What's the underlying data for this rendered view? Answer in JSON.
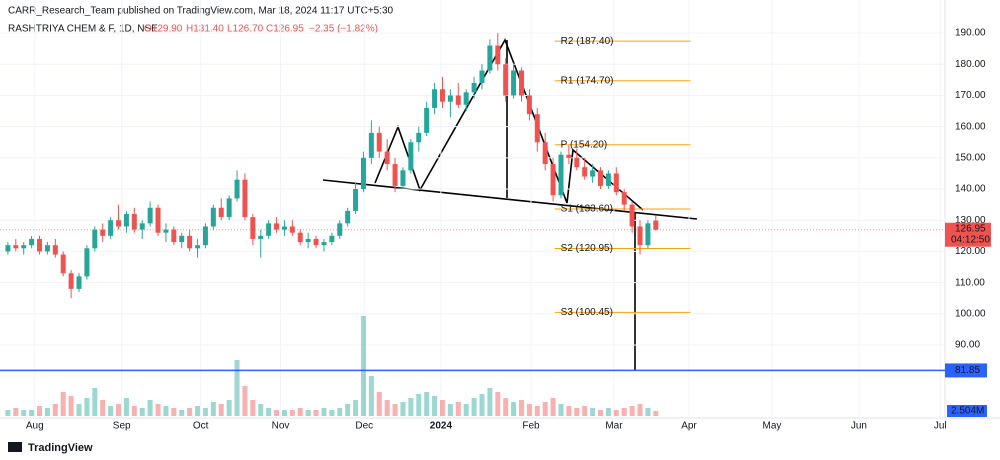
{
  "header": {
    "publisher": "CARR_Research_Team published on TradingView.com, Mar 18, 2024 11:17 UTC+5:30",
    "symbol": "RASHTRIYA CHEM & F, 1D, NSE",
    "open": "O129.90",
    "high": "H131.40",
    "low": "L126.70",
    "close": "C126.95",
    "change": "−2.35 (−1.82%)"
  },
  "footer": {
    "brand": "TradingView"
  },
  "chart_data": {
    "type": "candlestick",
    "up_color": "#26a69a",
    "down_color": "#ef5350",
    "ohlc": [
      [
        120,
        123,
        119,
        122
      ],
      [
        122,
        124,
        120,
        121
      ],
      [
        121,
        123,
        119,
        122
      ],
      [
        122,
        125,
        121,
        124
      ],
      [
        124,
        125,
        119,
        120
      ],
      [
        120,
        123,
        119,
        122
      ],
      [
        122,
        124,
        118,
        119
      ],
      [
        119,
        120,
        112,
        113
      ],
      [
        113,
        114,
        105,
        108
      ],
      [
        108,
        113,
        107,
        112
      ],
      [
        112,
        122,
        111,
        121
      ],
      [
        121,
        128,
        120,
        127
      ],
      [
        127,
        129,
        123,
        125
      ],
      [
        125,
        131,
        124,
        130
      ],
      [
        130,
        135,
        127,
        128
      ],
      [
        128,
        133,
        126,
        132
      ],
      [
        132,
        134,
        126,
        127
      ],
      [
        127,
        130,
        124,
        129
      ],
      [
        129,
        136,
        128,
        134
      ],
      [
        134,
        135,
        125,
        126
      ],
      [
        126,
        129,
        123,
        127
      ],
      [
        127,
        128,
        122,
        123
      ],
      [
        123,
        126,
        121,
        125
      ],
      [
        125,
        127,
        120,
        121
      ],
      [
        121,
        124,
        118,
        122
      ],
      [
        122,
        129,
        121,
        128
      ],
      [
        128,
        135,
        127,
        134
      ],
      [
        134,
        137,
        130,
        131
      ],
      [
        131,
        138,
        130,
        137
      ],
      [
        137,
        146,
        136,
        143
      ],
      [
        143,
        145,
        130,
        131
      ],
      [
        131,
        132,
        122,
        124
      ],
      [
        124,
        127,
        118,
        125
      ],
      [
        125,
        130,
        124,
        129
      ],
      [
        129,
        131,
        126,
        127
      ],
      [
        127,
        130,
        125,
        128
      ],
      [
        128,
        130,
        125,
        126
      ],
      [
        126,
        127,
        122,
        123
      ],
      [
        123,
        126,
        121,
        124
      ],
      [
        124,
        125,
        121,
        122
      ],
      [
        122,
        124,
        120,
        123
      ],
      [
        123,
        126,
        122,
        125
      ],
      [
        125,
        130,
        124,
        129
      ],
      [
        129,
        134,
        128,
        133
      ],
      [
        133,
        142,
        132,
        140
      ],
      [
        140,
        152,
        139,
        150
      ],
      [
        150,
        162,
        148,
        158
      ],
      [
        158,
        160,
        150,
        152
      ],
      [
        152,
        156,
        146,
        148
      ],
      [
        148,
        150,
        139,
        141
      ],
      [
        141,
        147,
        140,
        146
      ],
      [
        146,
        156,
        145,
        155
      ],
      [
        155,
        160,
        152,
        158
      ],
      [
        158,
        168,
        157,
        166
      ],
      [
        166,
        174,
        164,
        172
      ],
      [
        172,
        176,
        166,
        168
      ],
      [
        168,
        172,
        163,
        170
      ],
      [
        170,
        174,
        166,
        167
      ],
      [
        167,
        172,
        165,
        171
      ],
      [
        171,
        176,
        169,
        174
      ],
      [
        174,
        180,
        172,
        178
      ],
      [
        178,
        188,
        177,
        186
      ],
      [
        186,
        190,
        178,
        180
      ],
      [
        180,
        182,
        168,
        170
      ],
      [
        170,
        180,
        169,
        178
      ],
      [
        178,
        179,
        168,
        170
      ],
      [
        170,
        172,
        162,
        164
      ],
      [
        164,
        166,
        152,
        155
      ],
      [
        155,
        158,
        146,
        148
      ],
      [
        148,
        150,
        136,
        138
      ],
      [
        138,
        152,
        137,
        151
      ],
      [
        151,
        154,
        148,
        150
      ],
      [
        150,
        153,
        146,
        147
      ],
      [
        147,
        150,
        143,
        144
      ],
      [
        144,
        148,
        142,
        146
      ],
      [
        146,
        147,
        140,
        141
      ],
      [
        141,
        146,
        140,
        145
      ],
      [
        145,
        147,
        138,
        139
      ],
      [
        139,
        140,
        133,
        135
      ],
      [
        135,
        136,
        126,
        128
      ],
      [
        128,
        130,
        119,
        122
      ],
      [
        122,
        130,
        121,
        129
      ],
      [
        129.9,
        131.4,
        126.7,
        126.95
      ]
    ],
    "volume": {
      "values": [
        3,
        4,
        3,
        3,
        5,
        4,
        6,
        12,
        10,
        6,
        9,
        14,
        8,
        5,
        6,
        9,
        5,
        4,
        8,
        6,
        5,
        4,
        3,
        4,
        5,
        4,
        7,
        6,
        8,
        28,
        15,
        8,
        6,
        4,
        3,
        3,
        3,
        4,
        3,
        3,
        4,
        3,
        4,
        6,
        8,
        50,
        20,
        12,
        8,
        6,
        7,
        9,
        11,
        12,
        10,
        8,
        6,
        7,
        6,
        9,
        11,
        14,
        12,
        9,
        7,
        8,
        6,
        5,
        7,
        9,
        6,
        5,
        4,
        5,
        4,
        3,
        4,
        3,
        4,
        5,
        6,
        4,
        2.504
      ],
      "last_label": "2.504M"
    },
    "xlim": [
      -1,
      118.6
    ],
    "xticks": [
      {
        "value": 3.4,
        "label": "Aug"
      },
      {
        "value": 14.4,
        "label": "Sep"
      },
      {
        "value": 24.4,
        "label": "Oct"
      },
      {
        "value": 34.5,
        "label": "Nov"
      },
      {
        "value": 45.1,
        "label": "Dec"
      },
      {
        "value": 54.8,
        "label": "2024"
      },
      {
        "value": 66.2,
        "label": "Feb"
      },
      {
        "value": 76.7,
        "label": "Mar"
      },
      {
        "value": 86.2,
        "label": "Apr"
      },
      {
        "value": 96.7,
        "label": "May"
      },
      {
        "value": 107.7,
        "label": "Jun"
      },
      {
        "value": 118,
        "label": "Jul"
      }
    ],
    "ylim": [
      66.6,
      200.6
    ],
    "yticks": [
      {
        "value": 90,
        "label": "90.00"
      },
      {
        "value": 100,
        "label": "100.00"
      },
      {
        "value": 110,
        "label": "110.00"
      },
      {
        "value": 120,
        "label": "120.00"
      },
      {
        "value": 130,
        "label": "130.00"
      },
      {
        "value": 140,
        "label": "140.00"
      },
      {
        "value": 150,
        "label": "150.00"
      },
      {
        "value": 160,
        "label": "160.00"
      },
      {
        "value": 170,
        "label": "170.00"
      },
      {
        "value": 180,
        "label": "180.00"
      },
      {
        "value": 190,
        "label": "190.00"
      }
    ],
    "pivots": [
      {
        "label": "R2 (187.40)",
        "value": 187.4
      },
      {
        "label": "R1 (174.70)",
        "value": 174.7
      },
      {
        "label": "P (154.20)",
        "value": 154.2
      },
      {
        "label": "S1 (133.60)",
        "value": 133.6
      },
      {
        "label": "S2 (120.95)",
        "value": 120.95
      },
      {
        "label": "S3 (100.45)",
        "value": 100.45
      }
    ],
    "pivot_color": "#f7a21b",
    "hline": {
      "value": 81.85,
      "label": "81.85",
      "color": "#2962ff"
    },
    "price_label": {
      "value": 126.95,
      "label": "126.95",
      "countdown": "04:12:50"
    }
  }
}
